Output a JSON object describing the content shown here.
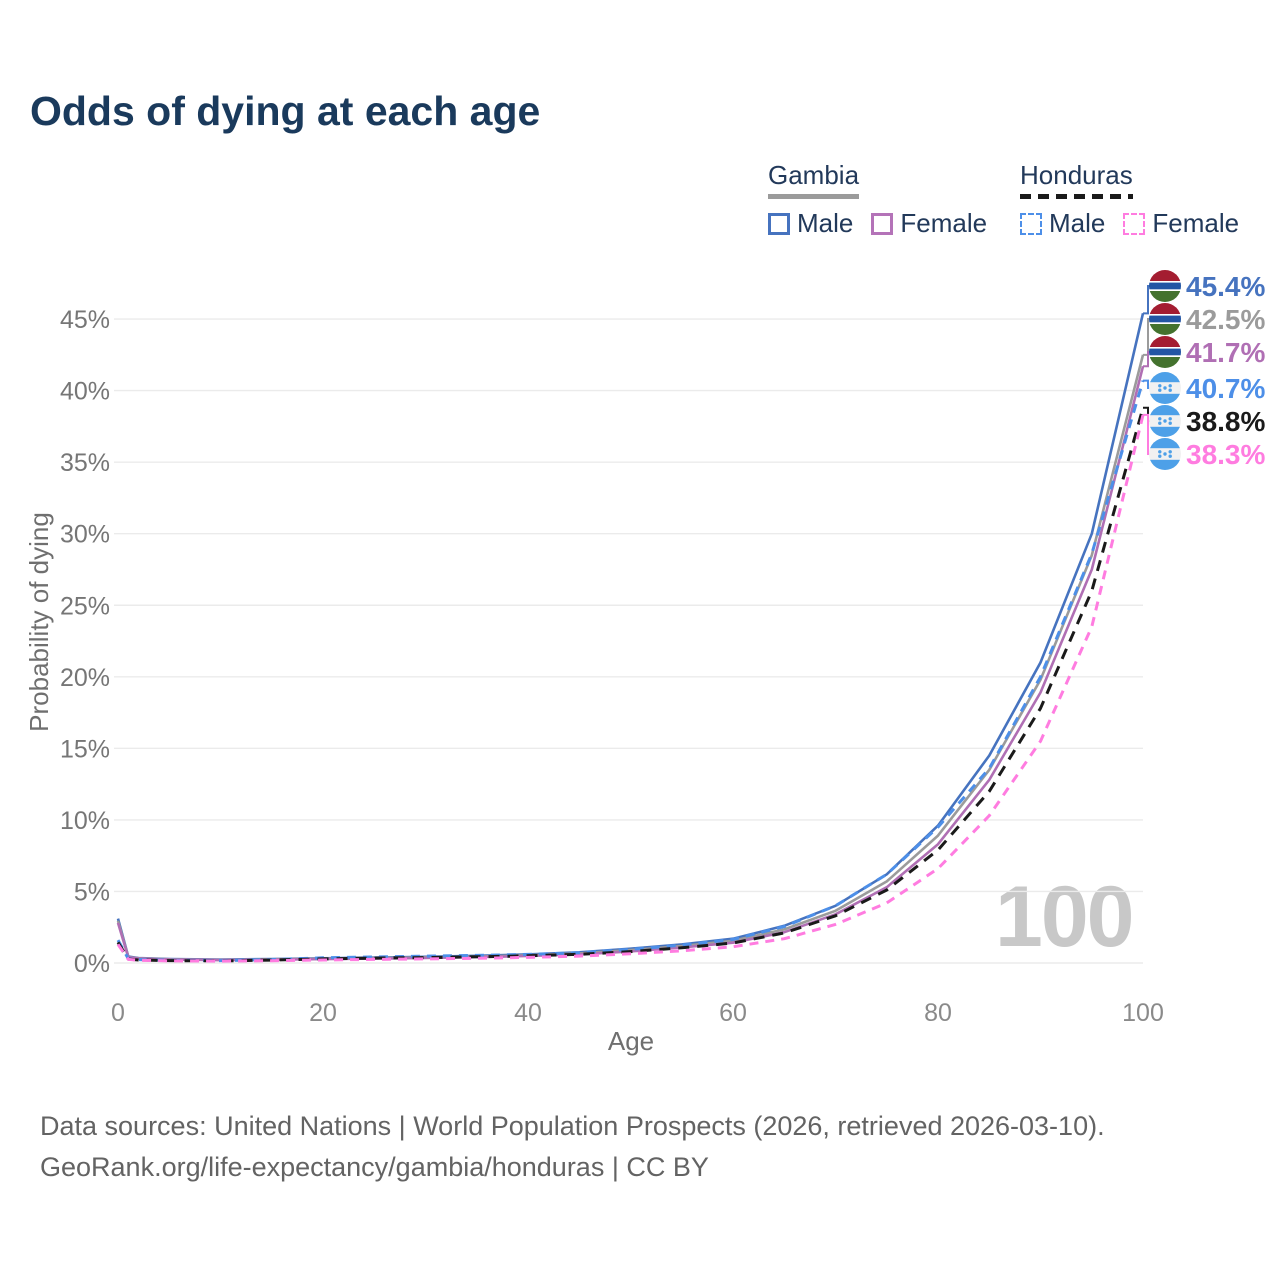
{
  "title": "Odds of dying at each age",
  "watermark": "100",
  "legend": {
    "groups": [
      {
        "label": "Gambia",
        "underline_style": "solid",
        "underline_color": "#9b9b9b",
        "items": [
          {
            "label": "Male",
            "color": "#4673bf",
            "dashed": false
          },
          {
            "label": "Female",
            "color": "#b473b8",
            "dashed": false
          }
        ]
      },
      {
        "label": "Honduras",
        "underline_style": "dashed",
        "underline_color": "#1a1a1a",
        "items": [
          {
            "label": "Male",
            "color": "#4d8fe8",
            "dashed": true
          },
          {
            "label": "Female",
            "color": "#ff7ce0",
            "dashed": true
          }
        ]
      }
    ]
  },
  "axes": {
    "x": {
      "label": "Age",
      "tick_labels": [
        "0",
        "20",
        "40",
        "60",
        "80",
        "100"
      ],
      "tick_values": [
        0,
        20,
        40,
        60,
        80,
        100
      ],
      "min": 0,
      "max": 100
    },
    "y": {
      "label": "Probability of dying",
      "tick_labels": [
        "0%",
        "5%",
        "10%",
        "15%",
        "20%",
        "25%",
        "30%",
        "35%",
        "40%",
        "45%"
      ],
      "tick_values": [
        0,
        5,
        10,
        15,
        20,
        25,
        30,
        35,
        40,
        45
      ],
      "min": 0,
      "max": 45
    }
  },
  "end_labels": [
    {
      "value": "45.4%",
      "color": "#4673bf",
      "flag": "gambia-flag-icon",
      "series": "Gambia Male"
    },
    {
      "value": "42.5%",
      "color": "#9b9b9b",
      "flag": "gambia-flag-icon",
      "series": "Gambia"
    },
    {
      "value": "41.7%",
      "color": "#b06fb4",
      "flag": "gambia-flag-icon",
      "series": "Gambia Female"
    },
    {
      "value": "40.7%",
      "color": "#4d8fe8",
      "flag": "honduras-flag-icon",
      "series": "Honduras Male"
    },
    {
      "value": "38.8%",
      "color": "#1a1a1a",
      "flag": "honduras-flag-icon",
      "series": "Honduras"
    },
    {
      "value": "38.3%",
      "color": "#ff7ce0",
      "flag": "honduras-flag-icon",
      "series": "Honduras Female"
    }
  ],
  "flag_colors": {
    "gambia": {
      "red": "#a41d31",
      "blue": "#2355a4",
      "green": "#44722e",
      "white": "#ffffff"
    },
    "honduras": {
      "blue": "#4da0e8",
      "white": "#f1f1f1"
    }
  },
  "footer": {
    "line1": "Data sources: United Nations | World Population Prospects (2026, retrieved 2026-03-10).",
    "line2": "GeoRank.org/life-expectancy/gambia/honduras | CC BY"
  },
  "chart_data": {
    "type": "line",
    "title": "Odds of dying at each age",
    "xlabel": "Age",
    "ylabel": "Probability of dying",
    "x_range": [
      0,
      100
    ],
    "y_range_pct": [
      0,
      45
    ],
    "grid": true,
    "legend_position": "top-right",
    "x": [
      0,
      1,
      2,
      5,
      10,
      15,
      20,
      25,
      30,
      35,
      40,
      45,
      50,
      55,
      60,
      65,
      70,
      75,
      80,
      85,
      90,
      95,
      100
    ],
    "series": [
      {
        "name": "Gambia Male",
        "color": "#4673bf",
        "dash": null,
        "end_label": "45.4%",
        "values_pct": [
          3.1,
          0.45,
          0.35,
          0.28,
          0.24,
          0.28,
          0.33,
          0.38,
          0.43,
          0.5,
          0.6,
          0.75,
          1.0,
          1.3,
          1.7,
          2.6,
          4.0,
          6.2,
          9.6,
          14.5,
          21.0,
          30.0,
          45.4
        ]
      },
      {
        "name": "Gambia",
        "color": "#9b9b9b",
        "dash": null,
        "end_label": "42.5%",
        "values_pct": [
          2.95,
          0.42,
          0.33,
          0.26,
          0.22,
          0.26,
          0.3,
          0.34,
          0.39,
          0.45,
          0.54,
          0.67,
          0.9,
          1.18,
          1.55,
          2.35,
          3.65,
          5.7,
          8.9,
          13.5,
          19.8,
          28.5,
          42.5
        ]
      },
      {
        "name": "Gambia Female",
        "color": "#b06fb4",
        "dash": null,
        "end_label": "41.7%",
        "values_pct": [
          2.8,
          0.4,
          0.31,
          0.24,
          0.2,
          0.23,
          0.27,
          0.31,
          0.35,
          0.41,
          0.49,
          0.61,
          0.81,
          1.08,
          1.42,
          2.15,
          3.4,
          5.3,
          8.3,
          12.8,
          18.9,
          27.5,
          41.7
        ]
      },
      {
        "name": "Honduras Male",
        "color": "#4d8fe8",
        "dash": [
          9,
          7
        ],
        "end_label": "40.7%",
        "values_pct": [
          1.6,
          0.3,
          0.24,
          0.19,
          0.17,
          0.24,
          0.36,
          0.42,
          0.48,
          0.53,
          0.6,
          0.72,
          0.95,
          1.25,
          1.65,
          2.55,
          4.0,
          6.2,
          9.5,
          13.6,
          20.0,
          28.6,
          40.7
        ]
      },
      {
        "name": "Honduras",
        "color": "#1a1a1a",
        "dash": [
          11,
          8
        ],
        "end_label": "38.8%",
        "values_pct": [
          1.45,
          0.27,
          0.21,
          0.17,
          0.15,
          0.2,
          0.29,
          0.34,
          0.38,
          0.43,
          0.5,
          0.61,
          0.8,
          1.06,
          1.4,
          2.1,
          3.3,
          5.1,
          7.9,
          12.0,
          17.8,
          26.0,
          38.8
        ]
      },
      {
        "name": "Honduras Female",
        "color": "#ff7ce0",
        "dash": [
          9,
          7
        ],
        "end_label": "38.3%",
        "values_pct": [
          1.3,
          0.25,
          0.19,
          0.15,
          0.13,
          0.16,
          0.21,
          0.25,
          0.29,
          0.33,
          0.39,
          0.48,
          0.64,
          0.85,
          1.13,
          1.7,
          2.7,
          4.2,
          6.6,
          10.3,
          15.5,
          23.5,
          38.3
        ]
      }
    ]
  }
}
